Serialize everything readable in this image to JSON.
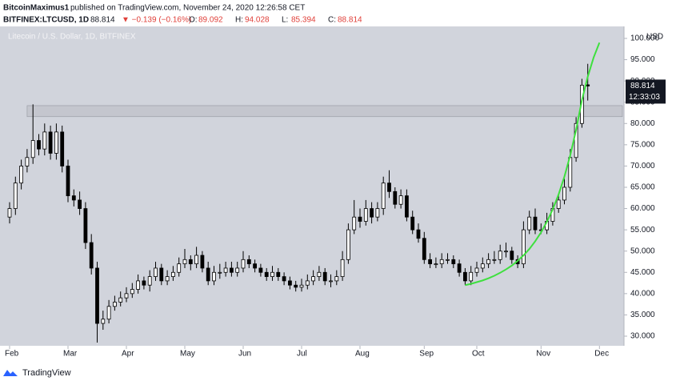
{
  "header": {
    "author": "BitcoinMaximus1",
    "published": "published on TradingView.com, November 24, 2020 12:26:58 CET",
    "symbol": "BITFINEX:LTCUSD, 1D",
    "change": "▼ −0.139 (−0.16%)",
    "ohlc_labels": [
      "O:",
      "H:",
      "L:",
      "C:"
    ]
  },
  "footer": {
    "brand": "TradingView"
  },
  "chart_data": {
    "type": "candlestick",
    "title": "Litecoin / U.S. Dollar, 1D, BITFINEX",
    "y_unit": "USD",
    "countdown": "12:33:03",
    "up_color": "#ffffff",
    "down_color": "#000000",
    "wick_color": "#000000",
    "background": "#d1d4dc",
    "ylim": [
      27.74,
      102.82
    ],
    "yticks": [
      {
        "value": 30,
        "label": "30.000"
      },
      {
        "value": 35,
        "label": "35.000"
      },
      {
        "value": 40,
        "label": "40.000"
      },
      {
        "value": 45,
        "label": "45.000"
      },
      {
        "value": 50,
        "label": "50.000"
      },
      {
        "value": 55,
        "label": "55.000"
      },
      {
        "value": 60,
        "label": "60.000"
      },
      {
        "value": 65,
        "label": "65.000"
      },
      {
        "value": 70,
        "label": "70.000"
      },
      {
        "value": 75,
        "label": "75.000"
      },
      {
        "value": 80,
        "label": "80.000"
      },
      {
        "value": 85,
        "label": "85.000"
      },
      {
        "value": 90,
        "label": "90.000"
      },
      {
        "value": 95,
        "label": "95.000"
      },
      {
        "value": 100,
        "label": "100.000"
      }
    ],
    "categories": [
      "Feb",
      null,
      null,
      null,
      null,
      null,
      null,
      null,
      null,
      null,
      "Mar",
      null,
      null,
      null,
      null,
      null,
      null,
      null,
      null,
      null,
      "Apr",
      null,
      null,
      null,
      null,
      null,
      null,
      null,
      null,
      null,
      "May",
      null,
      null,
      null,
      null,
      null,
      null,
      null,
      null,
      null,
      "Jun",
      null,
      null,
      null,
      null,
      null,
      null,
      null,
      null,
      null,
      "Jul",
      null,
      null,
      null,
      null,
      null,
      null,
      null,
      null,
      null,
      "Aug",
      null,
      null,
      null,
      null,
      null,
      null,
      null,
      null,
      null,
      null,
      "Sep",
      null,
      null,
      null,
      null,
      null,
      null,
      null,
      null,
      "Oct",
      null,
      null,
      null,
      null,
      null,
      null,
      null,
      null,
      null,
      null,
      "Nov",
      null,
      null,
      null,
      null,
      null,
      null,
      null,
      null,
      null,
      "Dec"
    ],
    "open": [
      58,
      60,
      66,
      70,
      72,
      76,
      74,
      78,
      73,
      78,
      70,
      63,
      62,
      60,
      52,
      46,
      33,
      34,
      37,
      38,
      39,
      40,
      41,
      43,
      42,
      44,
      46,
      43,
      44,
      45,
      47,
      48,
      47,
      49,
      46,
      43,
      45,
      45,
      46,
      45,
      46,
      48,
      47,
      46,
      45,
      44,
      45,
      44,
      43,
      42,
      41.5,
      42,
      43,
      44,
      45,
      43,
      43,
      44,
      48,
      55,
      58,
      57,
      60,
      58,
      60,
      66,
      64,
      61,
      63,
      58,
      55,
      53,
      48,
      47,
      47,
      48,
      48,
      47,
      45,
      43,
      45,
      46,
      47,
      48,
      48,
      50,
      50,
      48,
      47,
      55,
      58,
      55,
      55,
      57,
      60,
      62,
      65,
      72,
      80,
      89.092,
      null,
      null
    ],
    "high": [
      61.5,
      67.5,
      71.5,
      74,
      84.5,
      77.5,
      80,
      79.5,
      80,
      79.5,
      71.5,
      64.5,
      64,
      61.5,
      54,
      47.5,
      36,
      38.5,
      39.5,
      40.5,
      41.5,
      42.5,
      44.5,
      44,
      45.5,
      47.5,
      47,
      45.5,
      46.5,
      48.5,
      50.5,
      49,
      51,
      50,
      47.5,
      46.5,
      47,
      47.5,
      47.5,
      47.5,
      50,
      49,
      48,
      47,
      46,
      46.5,
      46,
      45,
      44,
      43,
      43.5,
      44.5,
      45.5,
      46.5,
      46,
      44.5,
      45.5,
      50,
      56.5,
      62,
      60,
      62,
      61.5,
      61.5,
      67.5,
      69,
      65,
      64.5,
      64.5,
      59.5,
      56.5,
      54.5,
      49.5,
      48.5,
      49.5,
      49.5,
      49,
      48,
      46,
      46.5,
      47.5,
      48.5,
      49.5,
      50,
      51.5,
      52,
      51,
      49,
      57,
      59.5,
      60,
      56.5,
      59,
      61.5,
      63.5,
      67,
      74,
      81.5,
      90.5,
      94.028,
      null,
      null
    ],
    "low": [
      56.5,
      58.5,
      64.5,
      68.5,
      70.5,
      72.5,
      72.5,
      71.5,
      71.5,
      68.5,
      61.5,
      60.5,
      58.5,
      50.5,
      44.5,
      28.5,
      31.5,
      33,
      36,
      37,
      38,
      39,
      40,
      41,
      40.5,
      43,
      42,
      42,
      43,
      44,
      46,
      45.5,
      46,
      45,
      42,
      42,
      43.5,
      44,
      44,
      44,
      45,
      46,
      45,
      44,
      43,
      43,
      43,
      42,
      41,
      40.5,
      40.5,
      41,
      42,
      43,
      42,
      41.5,
      42,
      43,
      47,
      54,
      55.5,
      56,
      56.5,
      57,
      58.5,
      62.5,
      60,
      60,
      57,
      54,
      52,
      47,
      46,
      46,
      46,
      47,
      46,
      44,
      42,
      42,
      44,
      45,
      46,
      47,
      47,
      48.5,
      47,
      46,
      46,
      54,
      54,
      54,
      54,
      56,
      59,
      61,
      64,
      71,
      79,
      85.394,
      null,
      null
    ],
    "close": [
      60,
      66,
      70,
      72,
      76,
      74,
      78,
      73,
      78,
      70,
      63,
      62,
      60,
      52,
      46,
      33,
      34,
      37,
      38,
      39,
      40,
      41,
      43,
      42,
      44,
      46,
      43,
      44,
      45,
      47,
      48,
      47,
      49,
      46,
      43,
      45,
      45,
      46,
      45,
      46,
      48,
      47,
      46,
      45,
      44,
      45,
      44,
      43,
      42,
      41.5,
      42,
      43,
      44,
      45,
      43,
      43,
      44,
      48,
      55,
      58,
      57,
      60,
      58,
      60,
      66,
      64,
      61,
      63,
      58,
      55,
      53,
      48,
      47,
      47,
      48,
      48,
      47,
      45,
      43,
      45,
      46,
      47,
      48,
      48,
      50,
      50,
      48,
      47,
      55,
      58,
      55,
      55,
      57,
      60,
      62,
      65,
      72,
      80,
      89,
      88.814,
      null,
      null
    ],
    "zone": {
      "from": 81.6,
      "to": 84.2,
      "start": 3,
      "color": "#bfc1c8"
    },
    "curve": {
      "color": "#3ee03e",
      "values": [
        null,
        null,
        null,
        null,
        null,
        null,
        null,
        null,
        null,
        null,
        null,
        null,
        null,
        null,
        null,
        null,
        null,
        null,
        null,
        null,
        null,
        null,
        null,
        null,
        null,
        null,
        null,
        null,
        null,
        null,
        null,
        null,
        null,
        null,
        null,
        null,
        null,
        null,
        null,
        null,
        null,
        null,
        null,
        null,
        null,
        null,
        null,
        null,
        null,
        null,
        null,
        null,
        null,
        null,
        null,
        null,
        null,
        null,
        null,
        null,
        null,
        null,
        null,
        null,
        null,
        null,
        null,
        null,
        null,
        null,
        null,
        null,
        null,
        null,
        null,
        null,
        null,
        null,
        42,
        42.3,
        42.7,
        43.1,
        43.6,
        44.2,
        44.9,
        45.7,
        46.6,
        47.7,
        49,
        50.5,
        52.3,
        54.4,
        56.9,
        59.8,
        63.3,
        67.5,
        72.5,
        78.5,
        85.5,
        91,
        95.5,
        99
      ]
    }
  }
}
